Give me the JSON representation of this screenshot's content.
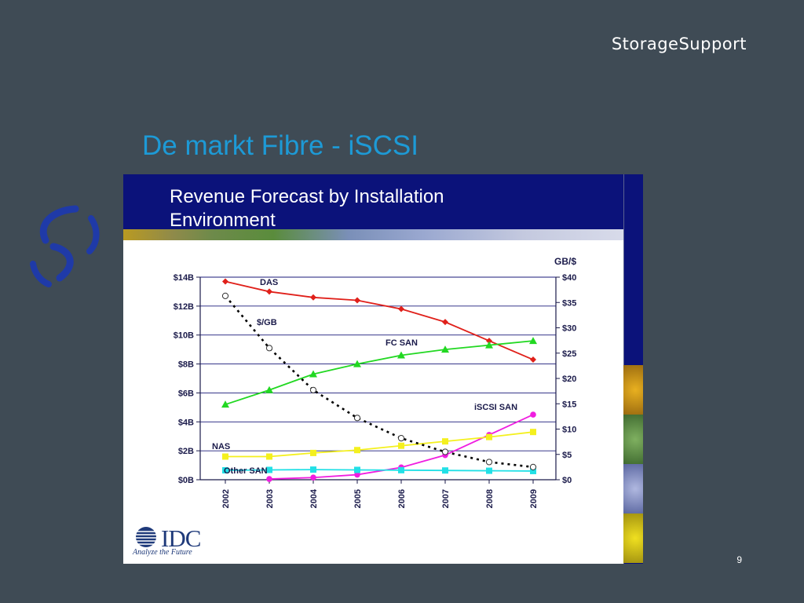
{
  "brand": "StorageSupport",
  "slide_title": "De markt Fibre - iSCSI",
  "page_number": "9",
  "logo": {
    "word": "IDC",
    "tagline": "Analyze the Future"
  },
  "colors": {
    "background": "#3f4b55",
    "title_blue": "#1d9ad6",
    "panel_navy": "#0b127a"
  },
  "chart_data": {
    "type": "line",
    "title": "Revenue Forecast by Installation Environment",
    "x": [
      "2002",
      "2003",
      "2004",
      "2005",
      "2006",
      "2007",
      "2008",
      "2009"
    ],
    "y_left": {
      "ticks": [
        "$0B",
        "$2B",
        "$4B",
        "$6B",
        "$8B",
        "$10B",
        "$12B",
        "$14B"
      ],
      "range": [
        0,
        14
      ]
    },
    "y_right": {
      "label": "GB/$",
      "ticks": [
        "$0",
        "$5",
        "$10",
        "$15",
        "$20",
        "$25",
        "$30",
        "$35",
        "$40"
      ],
      "range": [
        0,
        40
      ]
    },
    "grid": true,
    "series": [
      {
        "name": "DAS",
        "axis": "left",
        "color": "#e0201a",
        "marker": "diamond",
        "values": [
          13.7,
          13.0,
          12.6,
          12.4,
          11.8,
          10.9,
          9.6,
          8.3
        ]
      },
      {
        "name": "FC SAN",
        "axis": "left",
        "color": "#22d822",
        "marker": "triangle",
        "values": [
          5.2,
          6.2,
          7.3,
          8.0,
          8.6,
          9.0,
          9.3,
          9.6
        ]
      },
      {
        "name": "iSCSI SAN",
        "axis": "left",
        "color": "#f01ee0",
        "marker": "circle",
        "values": [
          null,
          0.05,
          0.15,
          0.35,
          0.85,
          1.7,
          3.1,
          4.5
        ]
      },
      {
        "name": "NAS",
        "axis": "left",
        "color": "#f4f01e",
        "marker": "square",
        "values": [
          1.6,
          1.6,
          1.85,
          2.05,
          2.35,
          2.65,
          2.95,
          3.3
        ]
      },
      {
        "name": "Other SAN",
        "axis": "left",
        "color": "#22e0e6",
        "marker": "square",
        "values": [
          0.65,
          0.68,
          0.7,
          0.68,
          0.66,
          0.64,
          0.62,
          0.6
        ]
      },
      {
        "name": "$/GB",
        "axis": "right",
        "color": "#000000",
        "marker": "open-circle",
        "dashed": true,
        "values": [
          36.3,
          26.0,
          17.7,
          12.2,
          8.2,
          5.5,
          3.5,
          2.5
        ]
      }
    ]
  }
}
